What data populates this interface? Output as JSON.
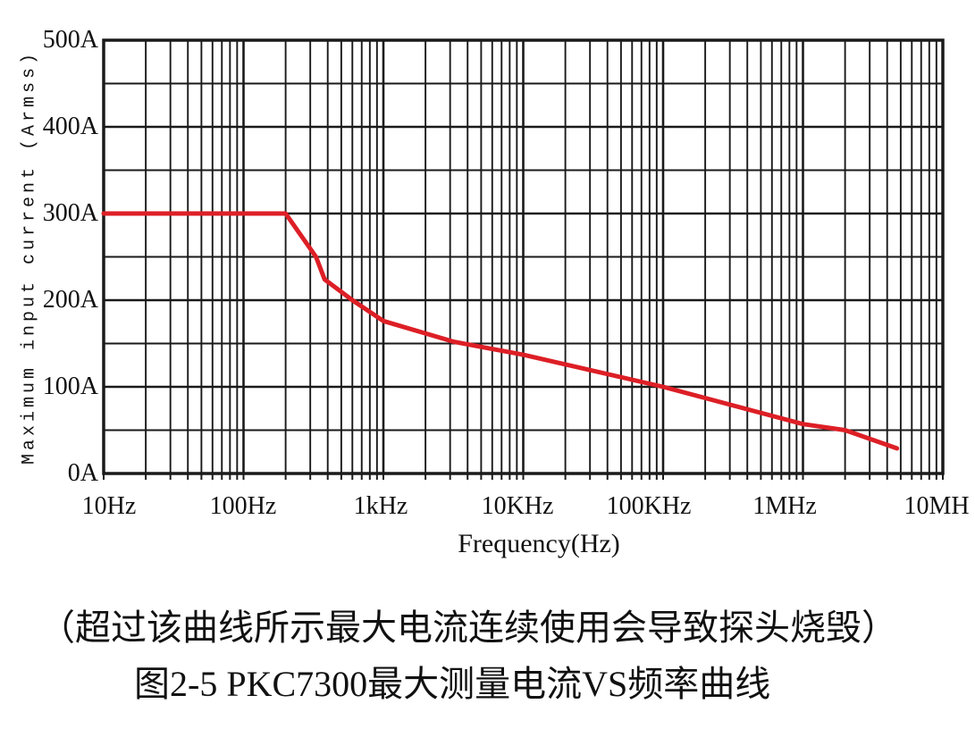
{
  "figure": {
    "caption_note": "（超过该曲线所示最大电流连续使用会导致探头烧毁）",
    "caption_title": "图2-5 PKC7300最大测量电流VS频率曲线"
  },
  "chart_data": {
    "type": "line",
    "title": "",
    "xlabel": "Frequency(Hz)",
    "ylabel": "Maximum input current (Armss)",
    "x_scale": "log",
    "x_range": [
      10,
      10000000
    ],
    "x_tick_labels": [
      "10Hz",
      "100Hz",
      "1kHz",
      "10KHz",
      "100KHz",
      "1MHz",
      "10MH"
    ],
    "y_range": [
      0,
      500
    ],
    "y_tick_step": 100,
    "y_minor_step": 50,
    "y_tick_labels": [
      "0A",
      "100A",
      "200A",
      "300A",
      "400A",
      "500A"
    ],
    "grid": true,
    "legend": "none",
    "grid_color": "#1a1a1a",
    "line_color": "#dd1f26",
    "series": [
      {
        "name": "maximum-measurable-current",
        "x": [
          10,
          200,
          330,
          380,
          600,
          1000,
          3200,
          10000,
          100000,
          1000000,
          2000000,
          4700000
        ],
        "y": [
          300,
          300,
          250,
          224,
          200,
          176,
          152,
          137,
          100,
          57,
          50,
          29
        ]
      }
    ]
  }
}
